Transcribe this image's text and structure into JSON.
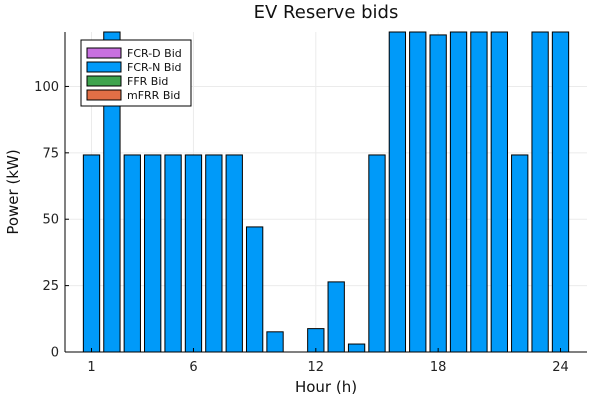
{
  "chart_data": {
    "type": "bar",
    "title": "EV Reserve bids",
    "xlabel": "Hour (h)",
    "ylabel": "Power (kW)",
    "x": [
      1,
      2,
      3,
      4,
      5,
      6,
      7,
      8,
      9,
      10,
      11,
      12,
      13,
      14,
      15,
      16,
      17,
      18,
      19,
      20,
      21,
      22,
      23,
      24
    ],
    "xlim": [
      -0.3,
      25.3
    ],
    "ylim": [
      0,
      120.5
    ],
    "xticks": [
      1,
      6,
      12,
      18,
      24
    ],
    "yticks": [
      0,
      25,
      50,
      75,
      100
    ],
    "grid": true,
    "legend_position": "top-left",
    "series": [
      {
        "name": "FCR-D Bid",
        "color": "#c870e0",
        "values": [
          0,
          0,
          0,
          0,
          0,
          0,
          0,
          0,
          0,
          0,
          0,
          0,
          0,
          0,
          0,
          0,
          0,
          0,
          0,
          0,
          0,
          0,
          0,
          0
        ]
      },
      {
        "name": "FCR-N Bid",
        "color": "#009af9",
        "values": [
          74.2,
          120.5,
          74.2,
          74.2,
          74.2,
          74.2,
          74.2,
          74.2,
          47.1,
          7.6,
          0,
          8.8,
          26.4,
          3.0,
          74.2,
          120.5,
          120.5,
          119.4,
          120.5,
          120.5,
          120.5,
          74.2,
          120.5,
          120.5
        ]
      },
      {
        "name": "FFR Bid",
        "color": "#3ea44e",
        "values": [
          0,
          0,
          0,
          0,
          0,
          0,
          0,
          0,
          0,
          0,
          0,
          0,
          0,
          0,
          0,
          0,
          0,
          0,
          0,
          0,
          0,
          0,
          0,
          0
        ]
      },
      {
        "name": "mFRR Bid",
        "color": "#e26f46",
        "values": [
          0,
          0,
          0,
          0,
          0,
          0,
          0,
          0,
          0,
          0,
          0,
          0,
          0,
          0,
          0,
          0,
          0,
          0,
          0,
          0,
          0,
          0,
          0,
          0
        ]
      }
    ]
  }
}
